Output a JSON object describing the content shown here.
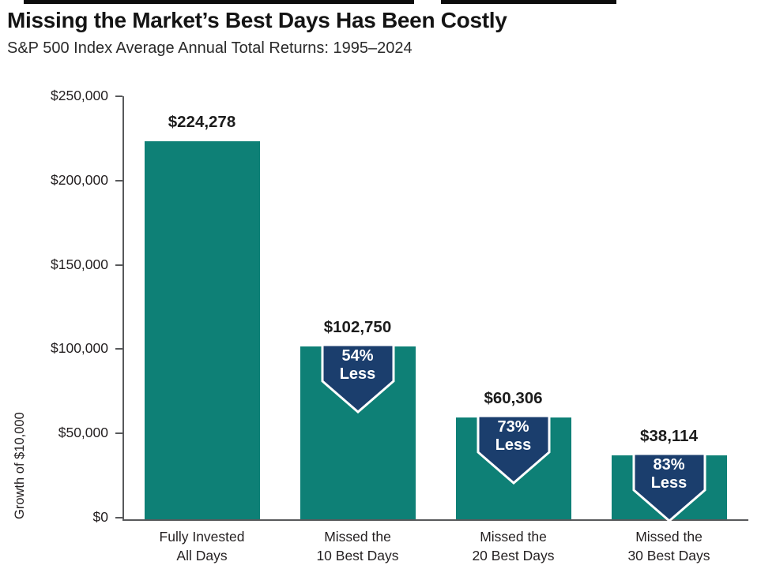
{
  "header": {
    "title": "Missing the Market’s Best Days Has Been Costly",
    "subtitle": "S&P 500 Index Average Annual Total Returns: 1995–2024"
  },
  "chart_data": {
    "type": "bar",
    "title": "Missing the Market’s Best Days Has Been Costly",
    "subtitle": "S&P 500 Index Average Annual Total Returns: 1995–2024",
    "xlabel": "",
    "ylabel": "Growth of $10,000",
    "ylim": [
      0,
      250000
    ],
    "grid": false,
    "legend": false,
    "yticks": [
      {
        "value": 0,
        "label": "$0"
      },
      {
        "value": 50000,
        "label": "$50,000"
      },
      {
        "value": 100000,
        "label": "$100,000"
      },
      {
        "value": 150000,
        "label": "$150,000"
      },
      {
        "value": 200000,
        "label": "$200,000"
      },
      {
        "value": 250000,
        "label": "$250,000"
      }
    ],
    "categories": [
      "Fully Invested\nAll Days",
      "Missed the\n10 Best Days",
      "Missed the\n20 Best Days",
      "Missed the\n30 Best Days"
    ],
    "values": [
      224278,
      102750,
      60306,
      38114
    ],
    "value_labels": [
      "$224,278",
      "$102,750",
      "$60,306",
      "$38,114"
    ],
    "annotations": [
      null,
      "54%\nLess",
      "73%\nLess",
      "83%\nLess"
    ],
    "colors": {
      "bar": "#0e8076",
      "arrow": "#1b3e6d",
      "arrow_outline": "#ffffff",
      "axis": "#58595b",
      "text": "#231f20"
    }
  }
}
